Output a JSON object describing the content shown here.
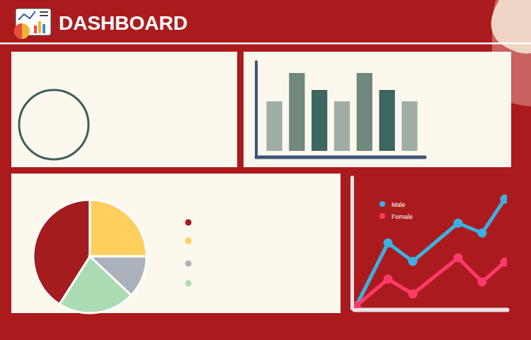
{
  "header": {
    "title": "DASHBOARD"
  },
  "chart_data": [
    {
      "type": "bar",
      "categories": [
        null,
        null,
        null,
        null,
        null,
        null,
        null
      ],
      "values": [
        70,
        110,
        86,
        70,
        110,
        86,
        70
      ],
      "colors": [
        "#9fafa6",
        "#71887f",
        "#3d6660",
        "#9fafa6",
        "#71887f",
        "#3d6660",
        "#9fafa6"
      ],
      "ylim": [
        0,
        120
      ],
      "yticks": [],
      "tick_labels": false
    },
    {
      "type": "pie",
      "categories": [
        null,
        null,
        null,
        null
      ],
      "values": [
        41,
        25,
        12,
        22
      ],
      "colors": [
        "#a51c1e",
        "#fecf5d",
        "#acb2bb",
        "#acdcb1"
      ],
      "legend": "right"
    },
    {
      "type": "line",
      "x": [
        3,
        48,
        83,
        147,
        181,
        213
      ],
      "xlim": [
        0,
        216
      ],
      "xticks": [],
      "ylim": [
        0,
        185
      ],
      "yticks": [],
      "tick_labels": false,
      "marker": "circle",
      "legend": "top-left",
      "series": [
        {
          "name": "Male",
          "color": "#3bb0e0",
          "values": [
            3,
            92,
            66,
            120,
            106,
            154
          ]
        },
        {
          "name": "Female",
          "color": "#fd3a69",
          "values": [
            3,
            41,
            20,
            71,
            37,
            65
          ]
        }
      ]
    }
  ]
}
